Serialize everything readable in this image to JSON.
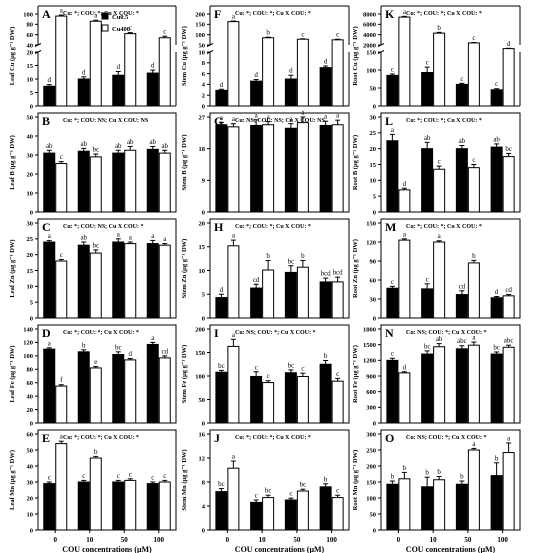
{
  "chart_data": {
    "type": "bar",
    "x_categories": [
      "0",
      "10",
      "50",
      "100"
    ],
    "xlabel": "COU concentrations (μM)",
    "legend": {
      "placement": "top-right of panel A",
      "entries": [
        {
          "name": "Cu0.5",
          "color": "#000000"
        },
        {
          "name": "Cu400",
          "color": "#ffffff"
        }
      ]
    },
    "grid": false,
    "panels": [
      {
        "id": "A",
        "stats": "Cu: *; COU: *; Cu X COU: *",
        "ylabel": "Leaf Cu (μg g⁻¹ DW)",
        "axis_break": true,
        "ticks_low": [
          0,
          5,
          10,
          15,
          20
        ],
        "ticks_high": [
          40,
          60,
          80,
          100
        ],
        "yticks": [
          "0",
          "5",
          "10",
          "15",
          "20",
          "40",
          "60",
          "80",
          "100"
        ],
        "series": [
          {
            "name": "Cu0.5",
            "values": [
              7.3,
              10.0,
              11.4,
              12.2
            ],
            "errors": [
              0.6,
              0.8,
              1.4,
              1.1
            ],
            "labels": [
              "d",
              "d",
              "d",
              "d"
            ]
          },
          {
            "name": "Cu400",
            "values": [
              96,
              86,
              62,
              54
            ],
            "errors": [
              2,
              2,
              2,
              3
            ],
            "labels": [
              "a",
              "a",
              "c",
              "c"
            ]
          }
        ]
      },
      {
        "id": "F",
        "stats": "Cu: *; COU: *; Cu X COU: *",
        "ylabel": "Stem Cu (μg g⁻¹ DW)",
        "axis_break": true,
        "ticks_low": [
          0,
          2,
          4,
          6,
          8,
          10
        ],
        "ticks_high": [
          50,
          100,
          150,
          200
        ],
        "yticks": [
          "0",
          "2",
          "4",
          "6",
          "8",
          "10",
          "50",
          "100",
          "150",
          "200"
        ],
        "series": [
          {
            "name": "Cu0.5",
            "values": [
              2.9,
              4.6,
              5.0,
              7.1
            ],
            "errors": [
              0.2,
              0.3,
              0.7,
              0.3
            ],
            "labels": [
              "d",
              "d",
              "d",
              "d"
            ]
          },
          {
            "name": "Cu400",
            "values": [
              163,
              85,
              78,
              75
            ],
            "errors": [
              3,
              3,
              2,
              3
            ],
            "labels": [
              "a",
              "b",
              "c",
              "c"
            ]
          }
        ]
      },
      {
        "id": "K",
        "stats": "Cu: *; COU: *; Cu X COU: *",
        "ylabel": "Root Cu (μg g⁻¹ DW)",
        "axis_break": true,
        "ticks_low": [
          0,
          50,
          100,
          150
        ],
        "ticks_high": [
          2000,
          4000,
          6000,
          8000
        ],
        "yticks": [
          "0",
          "50",
          "100",
          "150",
          "2000",
          "4000",
          "6000",
          "8000"
        ],
        "series": [
          {
            "name": "Cu0.5",
            "values": [
              85,
              93,
              60,
              45
            ],
            "errors": [
              4,
              15,
              3,
              3
            ],
            "labels": [
              "c",
              "c",
              "c",
              "c"
            ]
          },
          {
            "name": "Cu400",
            "values": [
              7400,
              4300,
              2400,
              1300
            ],
            "errors": [
              150,
              150,
              80,
              60
            ],
            "labels": [
              "a",
              "b",
              "c",
              "d"
            ]
          }
        ]
      },
      {
        "id": "B",
        "stats": "Cu: *; COU: NS; Cu X COU: NS",
        "ylabel": "Leaf B (μg g⁻¹ DW)",
        "ylim": [
          0,
          50
        ],
        "yticks": [
          "0",
          "10",
          "20",
          "30",
          "40",
          "50"
        ],
        "series": [
          {
            "name": "Cu0.5",
            "values": [
              31,
              32,
              31,
              33
            ],
            "errors": [
              1.5,
              1.5,
              1.5,
              1.5
            ],
            "labels": [
              "ab",
              "ab",
              "ab",
              "ab"
            ]
          },
          {
            "name": "Cu400",
            "values": [
              25.5,
              29,
              32.5,
              31
            ],
            "errors": [
              1,
              1.5,
              2,
              1.5
            ],
            "labels": [
              "c",
              "bc",
              "ab",
              "ab"
            ]
          }
        ]
      },
      {
        "id": "G",
        "stats": "Cu: NS; COU: NS; Cu X COU: NS",
        "ylabel": "Stem B (μg g⁻¹ DW)",
        "ylim": [
          0,
          27
        ],
        "yticks": [
          "0",
          "9",
          "18",
          "27"
        ],
        "series": [
          {
            "name": "Cu0.5",
            "values": [
              24.8,
              24.6,
              23.8,
              24.6
            ],
            "errors": [
              0.6,
              1.6,
              1.3,
              1.2
            ],
            "labels": [
              "a",
              "a",
              "a",
              "a"
            ]
          },
          {
            "name": "Cu400",
            "values": [
              24.2,
              24.8,
              25.4,
              24.8
            ],
            "errors": [
              0.9,
              0.9,
              1.6,
              1.3
            ],
            "labels": [
              "a",
              "a",
              "a",
              "a"
            ]
          }
        ]
      },
      {
        "id": "L",
        "stats": "Cu: *; COU: *; Cu X COU: *",
        "ylabel": "Root B (μg g⁻¹ DW)",
        "ylim": [
          0,
          30
        ],
        "yticks": [
          "0",
          "5",
          "10",
          "15",
          "20",
          "25",
          "30"
        ],
        "series": [
          {
            "name": "Cu0.5",
            "values": [
              22.5,
              20,
              20,
              20.5
            ],
            "errors": [
              2,
              2,
              1,
              1
            ],
            "labels": [
              "a",
              "ab",
              "ab",
              "ab"
            ]
          },
          {
            "name": "Cu400",
            "values": [
              7,
              13.5,
              14,
              17.5
            ],
            "errors": [
              0.5,
              1,
              1,
              1
            ],
            "labels": [
              "d",
              "c",
              "c",
              "bc"
            ]
          }
        ]
      },
      {
        "id": "C",
        "stats": "Cu: *; COU: NS; Cu X COU: *",
        "ylabel": "Leaf Zn (μg g⁻¹ DW)",
        "ylim": [
          0,
          30
        ],
        "yticks": [
          "0",
          "5",
          "10",
          "15",
          "20",
          "25",
          "30"
        ],
        "series": [
          {
            "name": "Cu0.5",
            "values": [
              24,
              23,
              24,
              23.5
            ],
            "errors": [
              0.5,
              1,
              1,
              1
            ],
            "labels": [
              "a",
              "ab",
              "a",
              "a"
            ]
          },
          {
            "name": "Cu400",
            "values": [
              18,
              20.5,
              23.5,
              23
            ],
            "errors": [
              0.5,
              1,
              0.5,
              0.5
            ],
            "labels": [
              "c",
              "bc",
              "a",
              "a"
            ]
          }
        ]
      },
      {
        "id": "H",
        "stats": "Cu: *; COU: *; Cu X COU: *",
        "ylabel": "Stem Zn (μg g⁻¹ DW)",
        "ylim": [
          0,
          20
        ],
        "yticks": [
          "0",
          "5",
          "10",
          "15",
          "20"
        ],
        "series": [
          {
            "name": "Cu0.5",
            "values": [
              4.3,
              6.3,
              9.6,
              7.6
            ],
            "errors": [
              0.7,
              0.8,
              1.4,
              0.8
            ],
            "labels": [
              "d",
              "cd",
              "bc",
              "bcd"
            ]
          },
          {
            "name": "Cu400",
            "values": [
              15.2,
              10.1,
              10.7,
              7.6
            ],
            "errors": [
              1.2,
              2.0,
              1.4,
              1.0
            ],
            "labels": [
              "a",
              "b",
              "b",
              "bcd"
            ]
          }
        ]
      },
      {
        "id": "M",
        "stats": "Cu: *; COU: *; Cu X COU: *",
        "ylabel": "Root Zn (μg g⁻¹ DW)",
        "ylim": [
          0,
          150
        ],
        "yticks": [
          "0",
          "30",
          "60",
          "90",
          "120",
          "150"
        ],
        "series": [
          {
            "name": "Cu0.5",
            "values": [
              47,
              46,
              37,
              32
            ],
            "errors": [
              3,
              8,
              6,
              2
            ],
            "labels": [
              "c",
              "c",
              "cd",
              "d"
            ]
          },
          {
            "name": "Cu400",
            "values": [
              123,
              120,
              87,
              35
            ],
            "errors": [
              2,
              2,
              4,
              2
            ],
            "labels": [
              "a",
              "a",
              "b",
              "cd"
            ]
          }
        ]
      },
      {
        "id": "D",
        "stats": "Cu: *; COU: *; Cu X COU: *",
        "ylabel": "Leaf Fe (μg g⁻¹ DW)",
        "ylim": [
          0,
          140
        ],
        "yticks": [
          "0",
          "20",
          "40",
          "60",
          "80",
          "100",
          "120",
          "140"
        ],
        "series": [
          {
            "name": "Cu0.5",
            "values": [
              110,
              106,
              102,
              117
            ],
            "errors": [
              2,
              3,
              4,
              3
            ],
            "labels": [
              "a",
              "b",
              "bc",
              "a"
            ]
          },
          {
            "name": "Cu400",
            "values": [
              55,
              82,
              94,
              97
            ],
            "errors": [
              2,
              2,
              2,
              3
            ],
            "labels": [
              "f",
              "e",
              "d",
              "cd"
            ]
          }
        ]
      },
      {
        "id": "I",
        "stats": "Cu: NS; COU: *; Cu X COU: *",
        "ylabel": "Stem Fe (μg g⁻¹ DW)",
        "ylim": [
          0,
          200
        ],
        "yticks": [
          "0",
          "50",
          "100",
          "150",
          "200"
        ],
        "series": [
          {
            "name": "Cu0.5",
            "values": [
              108,
              99,
              107,
              125
            ],
            "errors": [
              4,
              10,
              6,
              8
            ],
            "labels": [
              "bc",
              "c",
              "bc",
              "b"
            ]
          },
          {
            "name": "Cu400",
            "values": [
              163,
              86,
              99,
              89
            ],
            "errors": [
              15,
              4,
              7,
              6
            ],
            "labels": [
              "a",
              "c",
              "c",
              "c"
            ]
          }
        ]
      },
      {
        "id": "N",
        "stats": "Cu: NS; COU: *; Cu X COU: *",
        "ylabel": "Root Fe (μg g⁻¹ DW)",
        "ylim": [
          0,
          1800
        ],
        "yticks": [
          "0",
          "300",
          "600",
          "900",
          "1200",
          "1500",
          "1800"
        ],
        "series": [
          {
            "name": "Cu0.5",
            "values": [
              1200,
              1320,
              1420,
              1320
            ],
            "errors": [
              40,
              60,
              60,
              40
            ],
            "labels": [
              "c",
              "bc",
              "abc",
              "bc"
            ]
          },
          {
            "name": "Cu400",
            "values": [
              960,
              1460,
              1490,
              1450
            ],
            "errors": [
              20,
              60,
              60,
              40
            ],
            "labels": [
              "d",
              "ab",
              "a",
              "abc"
            ]
          }
        ]
      },
      {
        "id": "E",
        "stats": "Cu: *; COU: *; Cu X COU: *",
        "ylabel": "Leaf Mn (μg g⁻¹ DW)",
        "ylim": [
          0,
          60
        ],
        "yticks": [
          "0",
          "10",
          "20",
          "30",
          "40",
          "50",
          "60"
        ],
        "series": [
          {
            "name": "Cu0.5",
            "values": [
              29,
              30,
              30,
              29
            ],
            "errors": [
              1,
              1,
              1,
              1
            ],
            "labels": [
              "c",
              "c",
              "c",
              "c"
            ]
          },
          {
            "name": "Cu400",
            "values": [
              54,
              45,
              31,
              30
            ],
            "errors": [
              1.5,
              1,
              1,
              1
            ],
            "labels": [
              "a",
              "b",
              "c",
              "c"
            ]
          }
        ]
      },
      {
        "id": "J",
        "stats": "Cu: *; COU: *; Cu X COU: *",
        "ylabel": "Stem Mn (μg g⁻¹ DW)",
        "ylim": [
          0,
          16
        ],
        "yticks": [
          "0",
          "4",
          "8",
          "12",
          "16"
        ],
        "series": [
          {
            "name": "Cu0.5",
            "values": [
              6.4,
              4.6,
              5.0,
              7.2
            ],
            "errors": [
              0.5,
              0.4,
              0.3,
              0.5
            ],
            "labels": [
              "bc",
              "c",
              "c",
              "b"
            ]
          },
          {
            "name": "Cu400",
            "values": [
              10.3,
              5.4,
              6.5,
              5.4
            ],
            "errors": [
              1.2,
              0.4,
              0.3,
              0.4
            ],
            "labels": [
              "a",
              "bc",
              "bc",
              "c"
            ]
          }
        ]
      },
      {
        "id": "O",
        "stats": "Cu: NS; COU: *; Cu X COU: *",
        "ylabel": "Root Mn (μg g⁻¹ DW)",
        "ylim": [
          0,
          300
        ],
        "yticks": [
          "0",
          "50",
          "100",
          "150",
          "200",
          "250",
          "300"
        ],
        "series": [
          {
            "name": "Cu0.5",
            "values": [
              143,
              135,
              143,
              170
            ],
            "errors": [
              10,
              30,
              10,
              40
            ],
            "labels": [
              "b",
              "b",
              "b",
              "b"
            ]
          },
          {
            "name": "Cu400",
            "values": [
              160,
              157,
              250,
              242
            ],
            "errors": [
              20,
              10,
              5,
              30
            ],
            "labels": [
              "b",
              "b",
              "a",
              "a"
            ]
          }
        ]
      }
    ]
  }
}
